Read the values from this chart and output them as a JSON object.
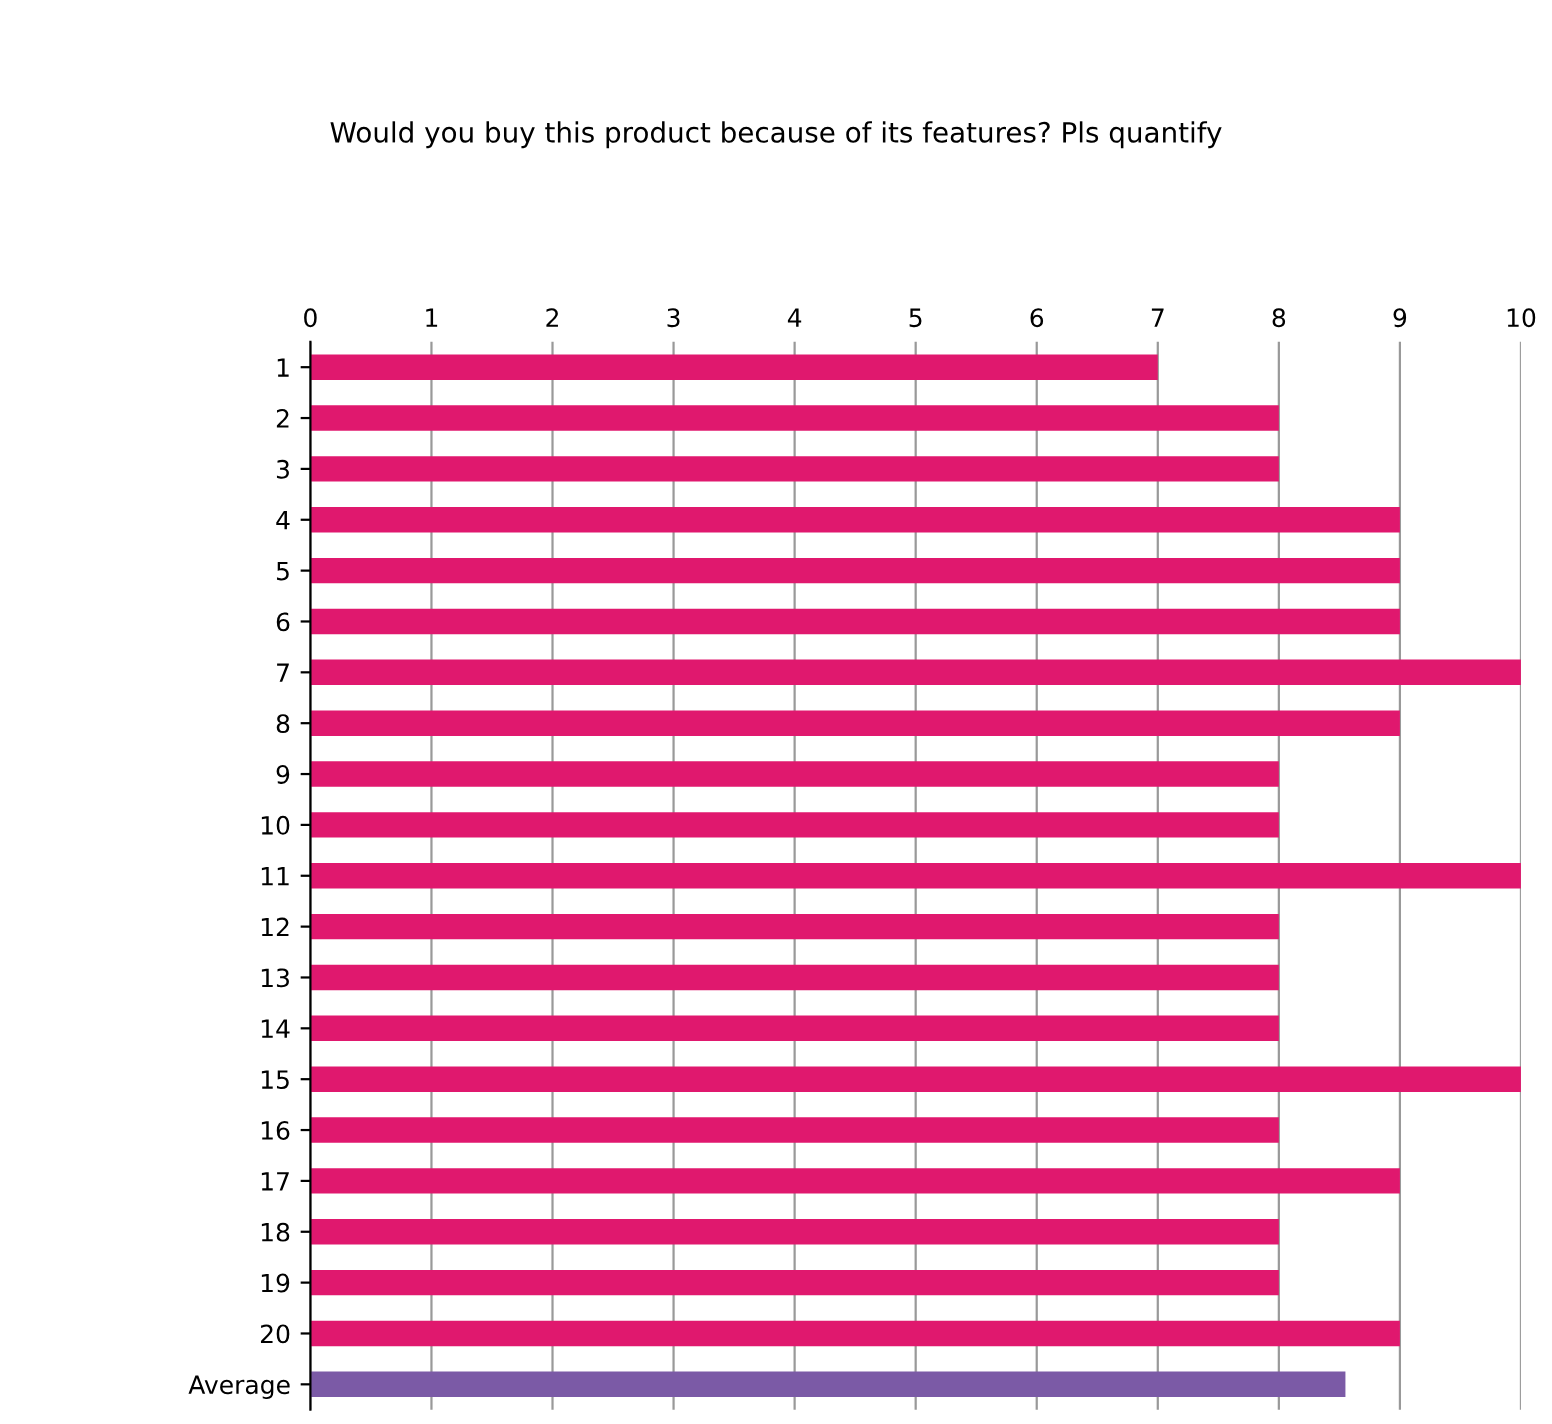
{
  "chart_data": {
    "type": "bar",
    "orientation": "horizontal",
    "title": "Would you buy this product because of its features? Pls quantify",
    "categories": [
      "1",
      "2",
      "3",
      "4",
      "5",
      "6",
      "7",
      "8",
      "9",
      "10",
      "11",
      "12",
      "13",
      "14",
      "15",
      "16",
      "17",
      "18",
      "19",
      "20",
      "Average"
    ],
    "values": [
      7,
      8,
      8,
      9,
      9,
      9,
      10,
      9,
      8,
      8,
      10,
      8,
      8,
      8,
      10,
      8,
      9,
      8,
      8,
      9,
      8.55
    ],
    "colors": [
      "#e0186e",
      "#e0186e",
      "#e0186e",
      "#e0186e",
      "#e0186e",
      "#e0186e",
      "#e0186e",
      "#e0186e",
      "#e0186e",
      "#e0186e",
      "#e0186e",
      "#e0186e",
      "#e0186e",
      "#e0186e",
      "#e0186e",
      "#e0186e",
      "#e0186e",
      "#e0186e",
      "#e0186e",
      "#e0186e",
      "#7b5aa6"
    ],
    "xlim": [
      0,
      10
    ],
    "xticks": [
      0,
      1,
      2,
      3,
      4,
      5,
      6,
      7,
      8,
      9,
      10
    ],
    "grid": "x",
    "legend": false
  }
}
